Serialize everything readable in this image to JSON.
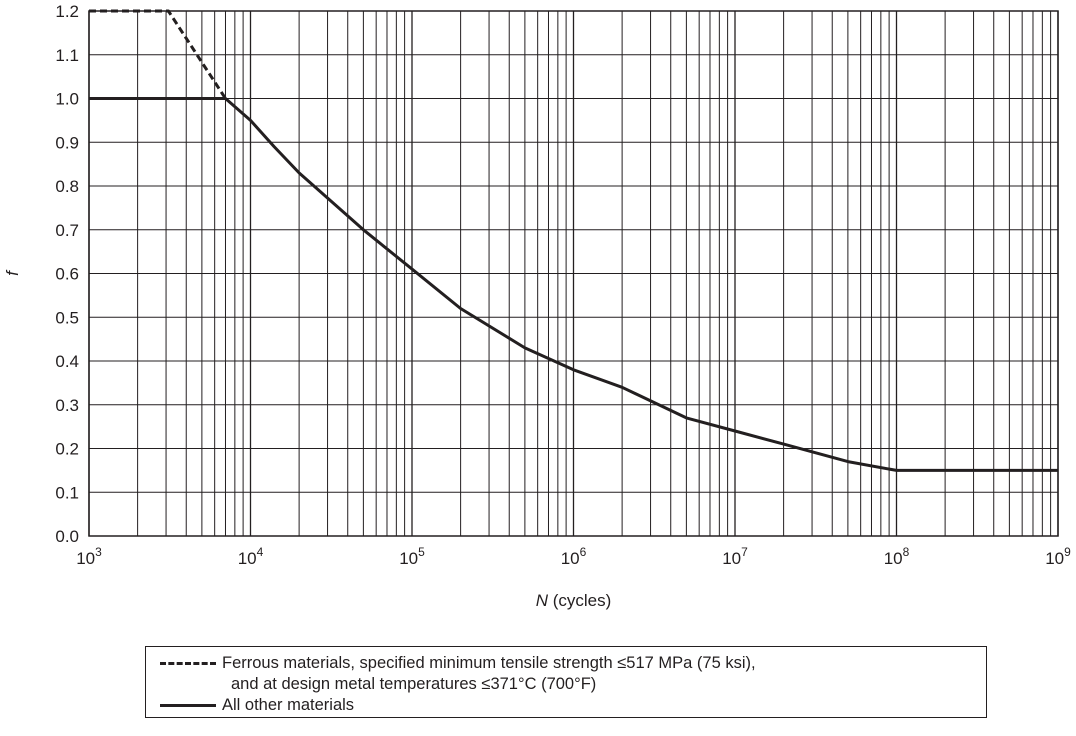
{
  "chart_data": {
    "type": "line",
    "title": "",
    "xlabel": "N (cycles)",
    "xlabel_italic": "N",
    "xlabel_rest": " (cycles)",
    "ylabel": "f",
    "x_scale": "log",
    "xlim": [
      1000,
      1000000000
    ],
    "ylim": [
      0.0,
      1.2
    ],
    "grid": true,
    "x_ticks": [
      {
        "base": "10",
        "exp": "3",
        "value": 1000
      },
      {
        "base": "10",
        "exp": "4",
        "value": 10000
      },
      {
        "base": "10",
        "exp": "5",
        "value": 100000
      },
      {
        "base": "10",
        "exp": "6",
        "value": 1000000
      },
      {
        "base": "10",
        "exp": "7",
        "value": 10000000
      },
      {
        "base": "10",
        "exp": "8",
        "value": 100000000
      },
      {
        "base": "10",
        "exp": "9",
        "value": 1000000000
      }
    ],
    "y_ticks": [
      "0.0",
      "0.1",
      "0.2",
      "0.3",
      "0.4",
      "0.5",
      "0.6",
      "0.7",
      "0.8",
      "0.9",
      "1.0",
      "1.1",
      "1.2"
    ],
    "series": [
      {
        "style": "dashed",
        "points": [
          {
            "x": 1000,
            "y": 1.2
          },
          {
            "x": 3100,
            "y": 1.2
          },
          {
            "x": 7000,
            "y": 1.0
          }
        ]
      },
      {
        "style": "solid",
        "points": [
          {
            "x": 1000,
            "y": 1.0
          },
          {
            "x": 7000,
            "y": 1.0
          },
          {
            "x": 10000,
            "y": 0.95
          },
          {
            "x": 14000,
            "y": 0.89
          },
          {
            "x": 20000,
            "y": 0.83
          },
          {
            "x": 50000,
            "y": 0.7
          },
          {
            "x": 100000,
            "y": 0.61
          },
          {
            "x": 200000,
            "y": 0.52
          },
          {
            "x": 500000,
            "y": 0.43
          },
          {
            "x": 1000000,
            "y": 0.38
          },
          {
            "x": 2000000,
            "y": 0.34
          },
          {
            "x": 5000000,
            "y": 0.27
          },
          {
            "x": 10000000,
            "y": 0.24
          },
          {
            "x": 20000000,
            "y": 0.21
          },
          {
            "x": 50000000,
            "y": 0.17
          },
          {
            "x": 100000000,
            "y": 0.15
          },
          {
            "x": 1000000000,
            "y": 0.15
          }
        ]
      }
    ],
    "legend": {
      "position": "bottom",
      "entries": [
        {
          "style": "dashed",
          "line1": "Ferrous materials, specified minimum tensile strength ≤517 MPa (75 ksi),",
          "line2": "and at design metal temperatures ≤371°C (700°F)"
        },
        {
          "style": "solid",
          "line1": "All other materials"
        }
      ]
    }
  }
}
